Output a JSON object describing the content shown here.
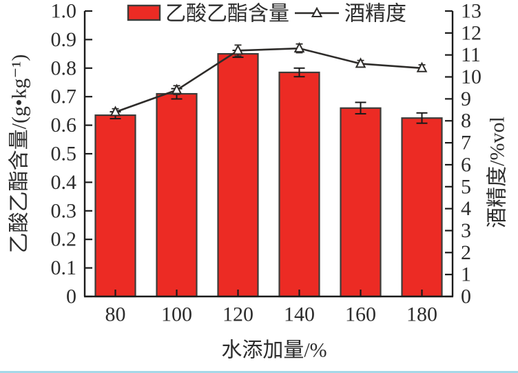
{
  "colors": {
    "bar_fill": "#EC2B24",
    "bar_outline": "#3C3C3A",
    "line_color": "#2E2C2A",
    "marker_fill": "#FFFFFF",
    "axis_color": "#1A1A1A",
    "text_color": "#2D2D2D",
    "bottom_strip": "#A5D8E8"
  },
  "chart_data": {
    "type": "bar",
    "subtype": "bar-line-dual-axis",
    "title": "",
    "categories": [
      "80",
      "100",
      "120",
      "140",
      "160",
      "180"
    ],
    "series": [
      {
        "name": "乙酸乙酯含量",
        "render": "bar",
        "axis": "left",
        "values": [
          0.635,
          0.71,
          0.85,
          0.785,
          0.66,
          0.625
        ],
        "errors": [
          0.012,
          0.018,
          0.012,
          0.015,
          0.02,
          0.018
        ],
        "color": "#EC2B24"
      },
      {
        "name": "酒精度",
        "render": "line",
        "axis": "right",
        "marker": "open-triangle",
        "values": [
          8.4,
          9.4,
          11.2,
          11.3,
          10.6,
          10.4
        ],
        "errors": [
          0.15,
          0.2,
          0.25,
          0.2,
          0.15,
          0.15
        ],
        "color": "#2E2C2A"
      }
    ],
    "x_axis": {
      "label": "水添加量/%",
      "tick_labels": [
        "80",
        "100",
        "120",
        "140",
        "160",
        "180"
      ]
    },
    "left_axis": {
      "label": "乙酸乙酯含量/(g•kg⁻¹)",
      "min": 0,
      "max": 1.0,
      "step": 0.1,
      "tick_labels": [
        "0",
        "0.1",
        "0.2",
        "0.3",
        "0.4",
        "0.5",
        "0.6",
        "0.7",
        "0.8",
        "0.9",
        "1.0"
      ]
    },
    "right_axis": {
      "label": "酒精度/%vol",
      "min": 0,
      "max": 13,
      "step": 1,
      "tick_labels": [
        "0",
        "1",
        "2",
        "3",
        "4",
        "5",
        "6",
        "7",
        "8",
        "9",
        "10",
        "11",
        "12",
        "13"
      ]
    },
    "legend": {
      "position": "top",
      "items": [
        {
          "label": "乙酸乙酯含量",
          "swatch": "bar"
        },
        {
          "label": "酒精度",
          "swatch": "line-triangle"
        }
      ]
    },
    "grid": false
  }
}
